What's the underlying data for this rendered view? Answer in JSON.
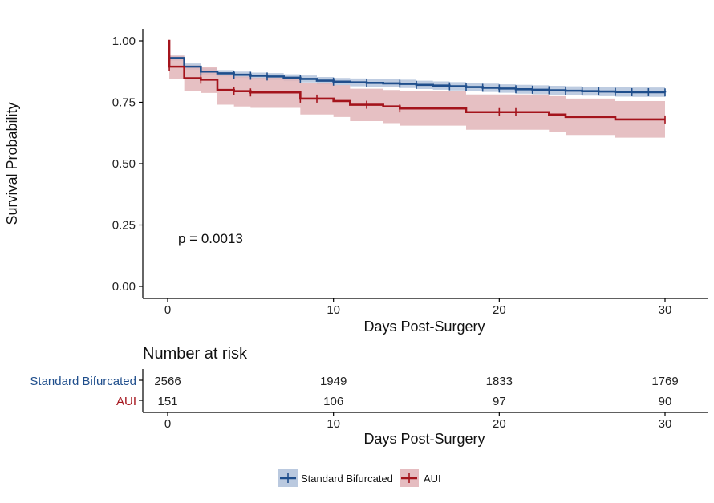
{
  "chart_data": {
    "type": "line",
    "subtype": "kaplan-meier step",
    "ylabel": "Survival Probability",
    "xlabel": "Days Post-Surgery",
    "xlim": [
      -1.5,
      32.5
    ],
    "ylim": [
      -0.05,
      1.05
    ],
    "x_ticks": [
      0,
      10,
      20,
      30
    ],
    "y_ticks": [
      0.0,
      0.25,
      0.5,
      0.75,
      1.0
    ],
    "y_tick_labels": [
      "0.00",
      "0.25",
      "0.50",
      "0.75",
      "1.00"
    ],
    "x_tick_labels": [
      "0",
      "10",
      "20",
      "30"
    ],
    "annotation": "p = 0.0013",
    "grid": false,
    "legend_position": "bottom",
    "series": [
      {
        "name": "Standard Bifurcated",
        "color": "#1f4e8c",
        "band_color": "#b3c3dc",
        "steps": [
          [
            0,
            0.93
          ],
          [
            1,
            0.895
          ],
          [
            2,
            0.875
          ],
          [
            3,
            0.868
          ],
          [
            4,
            0.862
          ],
          [
            5,
            0.858
          ],
          [
            6,
            0.855
          ],
          [
            7,
            0.85
          ],
          [
            8,
            0.845
          ],
          [
            9,
            0.838
          ],
          [
            10,
            0.834
          ],
          [
            11,
            0.831
          ],
          [
            12,
            0.829
          ],
          [
            13,
            0.827
          ],
          [
            14,
            0.825
          ],
          [
            15,
            0.821
          ],
          [
            16,
            0.818
          ],
          [
            17,
            0.815
          ],
          [
            18,
            0.812
          ],
          [
            19,
            0.809
          ],
          [
            20,
            0.806
          ],
          [
            21,
            0.803
          ],
          [
            22,
            0.801
          ],
          [
            23,
            0.799
          ],
          [
            24,
            0.797
          ],
          [
            25,
            0.795
          ],
          [
            26,
            0.794
          ],
          [
            27,
            0.792
          ],
          [
            28,
            0.791
          ],
          [
            30,
            0.79
          ]
        ],
        "lower": [
          0.92,
          0.883,
          0.862,
          0.855,
          0.849,
          0.845,
          0.841,
          0.836,
          0.831,
          0.823,
          0.819,
          0.815,
          0.813,
          0.811,
          0.808,
          0.804,
          0.801,
          0.798,
          0.795,
          0.792,
          0.789,
          0.785,
          0.783,
          0.781,
          0.779,
          0.777,
          0.775,
          0.773,
          0.772,
          0.771
        ],
        "upper": [
          0.94,
          0.908,
          0.888,
          0.881,
          0.875,
          0.871,
          0.869,
          0.864,
          0.859,
          0.853,
          0.849,
          0.847,
          0.845,
          0.843,
          0.842,
          0.838,
          0.835,
          0.832,
          0.829,
          0.826,
          0.823,
          0.821,
          0.819,
          0.817,
          0.815,
          0.813,
          0.813,
          0.811,
          0.81,
          0.809
        ],
        "censor_x": [
          2,
          4,
          5,
          6,
          8,
          10,
          12,
          14,
          15,
          17,
          18,
          19,
          20,
          21,
          22,
          23,
          24,
          25,
          26,
          27,
          28,
          29,
          30
        ]
      },
      {
        "name": "AUI",
        "color": "#a4141c",
        "band_color": "#e2b5b9",
        "steps": [
          [
            0,
            1.0
          ],
          [
            0.1,
            0.895
          ],
          [
            1,
            0.848
          ],
          [
            2,
            0.842
          ],
          [
            3,
            0.8
          ],
          [
            4,
            0.795
          ],
          [
            5,
            0.79
          ],
          [
            8,
            0.765
          ],
          [
            10,
            0.755
          ],
          [
            11,
            0.74
          ],
          [
            13,
            0.733
          ],
          [
            14,
            0.725
          ],
          [
            18,
            0.71
          ],
          [
            23,
            0.7
          ],
          [
            24,
            0.69
          ],
          [
            27,
            0.68
          ],
          [
            30,
            0.68
          ]
        ],
        "lower": [
          1.0,
          0.845,
          0.795,
          0.788,
          0.74,
          0.733,
          0.727,
          0.7,
          0.69,
          0.673,
          0.665,
          0.655,
          0.638,
          0.628,
          0.617,
          0.606,
          0.606
        ],
        "upper": [
          1.0,
          0.94,
          0.9,
          0.895,
          0.86,
          0.855,
          0.85,
          0.828,
          0.82,
          0.805,
          0.8,
          0.795,
          0.782,
          0.775,
          0.765,
          0.755,
          0.755
        ],
        "censor_x": [
          0.1,
          2,
          4,
          5,
          8,
          9,
          12,
          14,
          20,
          21,
          30
        ]
      }
    ],
    "risk_table": {
      "title": "Number at risk",
      "xlabel": "Days Post-Surgery",
      "time_points": [
        0,
        10,
        20,
        30
      ],
      "rows": [
        {
          "name": "Standard Bifurcated",
          "color": "#1f4e8c",
          "counts": [
            "2566",
            "1949",
            "1833",
            "1769"
          ]
        },
        {
          "name": "AUI",
          "color": "#a4141c",
          "counts": [
            "151",
            "106",
            "97",
            "90"
          ]
        }
      ]
    }
  }
}
